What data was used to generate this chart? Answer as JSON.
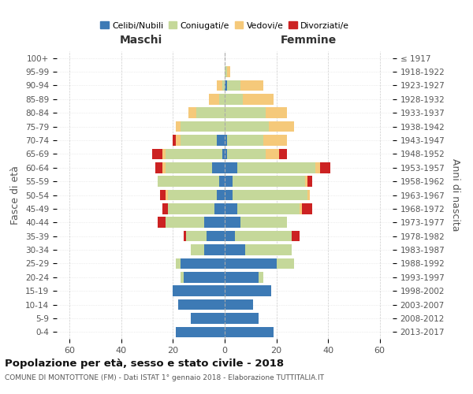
{
  "age_groups": [
    "0-4",
    "5-9",
    "10-14",
    "15-19",
    "20-24",
    "25-29",
    "30-34",
    "35-39",
    "40-44",
    "45-49",
    "50-54",
    "55-59",
    "60-64",
    "65-69",
    "70-74",
    "75-79",
    "80-84",
    "85-89",
    "90-94",
    "95-99",
    "100+"
  ],
  "birth_years": [
    "2013-2017",
    "2008-2012",
    "2003-2007",
    "1998-2002",
    "1993-1997",
    "1988-1992",
    "1983-1987",
    "1978-1982",
    "1973-1977",
    "1968-1972",
    "1963-1967",
    "1958-1962",
    "1953-1957",
    "1948-1952",
    "1943-1947",
    "1938-1942",
    "1933-1937",
    "1928-1932",
    "1923-1927",
    "1918-1922",
    "≤ 1917"
  ],
  "male": {
    "celibi": [
      19,
      13,
      18,
      20,
      16,
      17,
      8,
      7,
      8,
      4,
      3,
      2,
      5,
      1,
      3,
      0,
      0,
      0,
      0,
      0,
      0
    ],
    "coniugati": [
      0,
      0,
      0,
      0,
      1,
      2,
      5,
      8,
      15,
      18,
      19,
      24,
      18,
      22,
      14,
      17,
      11,
      2,
      1,
      0,
      0
    ],
    "vedovi": [
      0,
      0,
      0,
      0,
      0,
      0,
      0,
      0,
      0,
      0,
      1,
      0,
      1,
      1,
      2,
      2,
      3,
      4,
      2,
      0,
      0
    ],
    "divorziati": [
      0,
      0,
      0,
      0,
      0,
      0,
      0,
      1,
      3,
      2,
      2,
      0,
      3,
      4,
      1,
      0,
      0,
      0,
      0,
      0,
      0
    ]
  },
  "female": {
    "nubili": [
      19,
      13,
      11,
      18,
      13,
      20,
      8,
      4,
      6,
      5,
      3,
      3,
      5,
      1,
      1,
      0,
      0,
      0,
      1,
      0,
      0
    ],
    "coniugate": [
      0,
      0,
      0,
      0,
      2,
      7,
      18,
      22,
      18,
      24,
      29,
      28,
      30,
      15,
      14,
      17,
      16,
      7,
      5,
      1,
      0
    ],
    "vedove": [
      0,
      0,
      0,
      0,
      0,
      0,
      0,
      0,
      0,
      1,
      1,
      1,
      2,
      5,
      9,
      10,
      8,
      12,
      9,
      1,
      0
    ],
    "divorziate": [
      0,
      0,
      0,
      0,
      0,
      0,
      0,
      3,
      0,
      4,
      0,
      2,
      4,
      3,
      0,
      0,
      0,
      0,
      0,
      0,
      0
    ]
  },
  "colors": {
    "celibi": "#3d7ab5",
    "coniugati": "#c5d89a",
    "vedovi": "#f5c97a",
    "divorziati": "#cc2222"
  },
  "xlim": 65,
  "title": "Popolazione per età, sesso e stato civile - 2018",
  "subtitle": "COMUNE DI MONTOTTONE (FM) - Dati ISTAT 1° gennaio 2018 - Elaborazione TUTTITALIA.IT",
  "ylabel_left": "Fasce di età",
  "ylabel_right": "Anni di nascita",
  "xlabel_male": "Maschi",
  "xlabel_female": "Femmine",
  "legend_labels": [
    "Celibi/Nubili",
    "Coniugati/e",
    "Vedovi/e",
    "Divorziati/e"
  ]
}
